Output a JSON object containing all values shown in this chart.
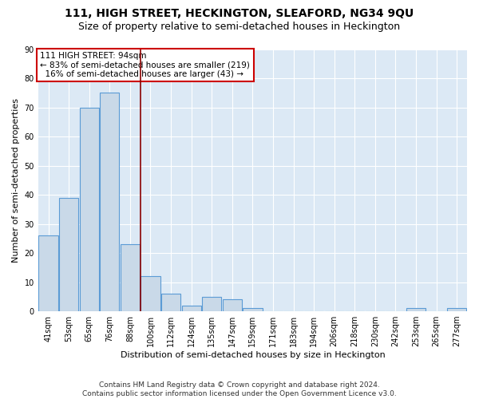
{
  "title": "111, HIGH STREET, HECKINGTON, SLEAFORD, NG34 9QU",
  "subtitle": "Size of property relative to semi-detached houses in Heckington",
  "xlabel": "Distribution of semi-detached houses by size in Heckington",
  "ylabel": "Number of semi-detached properties",
  "categories": [
    "41sqm",
    "53sqm",
    "65sqm",
    "76sqm",
    "88sqm",
    "100sqm",
    "112sqm",
    "124sqm",
    "135sqm",
    "147sqm",
    "159sqm",
    "171sqm",
    "183sqm",
    "194sqm",
    "206sqm",
    "218sqm",
    "230sqm",
    "242sqm",
    "253sqm",
    "265sqm",
    "277sqm"
  ],
  "values": [
    26,
    39,
    70,
    75,
    23,
    12,
    6,
    2,
    5,
    4,
    1,
    0,
    0,
    0,
    0,
    0,
    0,
    0,
    1,
    0,
    1
  ],
  "bar_color": "#c9d9e8",
  "bar_edge_color": "#5b9bd5",
  "vline_color": "#8b0000",
  "vline_position": 4.5,
  "annotation_text": "111 HIGH STREET: 94sqm\n← 83% of semi-detached houses are smaller (219)\n  16% of semi-detached houses are larger (43) →",
  "annotation_box_color": "#ffffff",
  "annotation_box_edge_color": "#cc0000",
  "ylim": [
    0,
    90
  ],
  "yticks": [
    0,
    10,
    20,
    30,
    40,
    50,
    60,
    70,
    80,
    90
  ],
  "background_color": "#dce9f5",
  "footer_line1": "Contains HM Land Registry data © Crown copyright and database right 2024.",
  "footer_line2": "Contains public sector information licensed under the Open Government Licence v3.0.",
  "title_fontsize": 10,
  "subtitle_fontsize": 9,
  "axis_label_fontsize": 8,
  "tick_fontsize": 7,
  "annotation_fontsize": 7.5,
  "footer_fontsize": 6.5
}
